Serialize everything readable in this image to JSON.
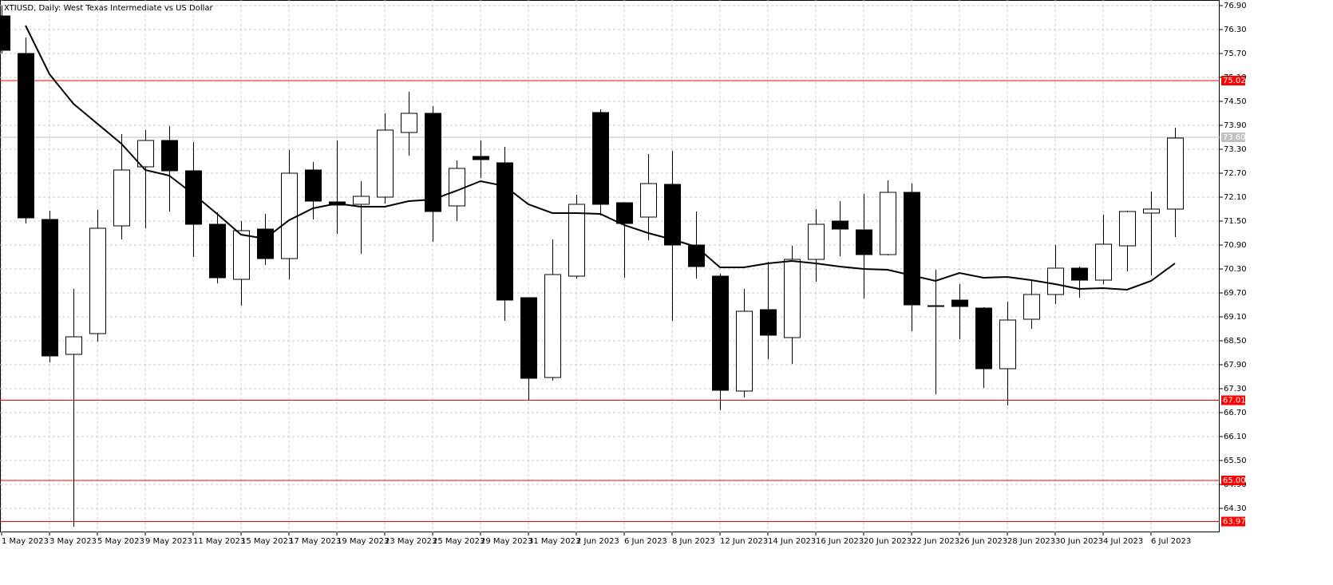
{
  "chart_data": {
    "type": "candlestick",
    "title": "XTIUSD, Daily:  West Texas Intermediate vs US Dollar",
    "categories": [
      "1 May 2023",
      null,
      "3 May 2023",
      null,
      "5 May 2023",
      null,
      "9 May 2023",
      null,
      "11 May 2023",
      null,
      "15 May 2023",
      null,
      "17 May 2023",
      null,
      "19 May 2023",
      null,
      "23 May 2023",
      null,
      "25 May 2023",
      null,
      "29 May 2023",
      null,
      "31 May 2023",
      null,
      "2 Jun 2023",
      null,
      "6 Jun 2023",
      null,
      "8 Jun 2023",
      null,
      "12 Jun 2023",
      null,
      "14 Jun 2023",
      null,
      "16 Jun 2023",
      null,
      "20 Jun 2023",
      null,
      "22 Jun 2023",
      null,
      "26 Jun 2023",
      null,
      "28 Jun 2023",
      null,
      "30 Jun 2023",
      null,
      "4 Jul 2023",
      null,
      "6 Jul 2023",
      null
    ],
    "open": [
      76.64,
      75.7,
      71.54,
      68.16,
      68.68,
      71.38,
      72.86,
      73.52,
      72.76,
      71.42,
      70.04,
      71.3,
      70.56,
      72.78,
      71.98,
      71.92,
      72.1,
      73.72,
      74.2,
      71.88,
      73.12,
      72.96,
      69.58,
      67.58,
      70.12,
      74.22,
      71.96,
      71.6,
      72.42,
      70.9,
      70.12,
      67.24,
      69.28,
      68.58,
      70.54,
      71.5,
      71.28,
      70.66,
      72.22,
      69.38,
      69.52,
      69.32,
      67.8,
      69.04,
      69.66,
      70.32,
      70.02,
      70.88,
      71.7,
      71.8
    ],
    "high": [
      76.9,
      76.1,
      71.76,
      69.8,
      71.78,
      73.68,
      73.78,
      73.88,
      73.48,
      71.72,
      71.5,
      71.68,
      73.28,
      72.98,
      73.52,
      72.5,
      74.2,
      74.74,
      74.38,
      73.02,
      73.52,
      73.36,
      69.58,
      71.04,
      72.16,
      74.3,
      71.96,
      73.18,
      73.26,
      71.74,
      70.18,
      69.8,
      70.48,
      70.88,
      71.8,
      72.0,
      72.18,
      72.52,
      72.44,
      70.28,
      69.92,
      69.34,
      69.48,
      70.0,
      70.9,
      70.36,
      71.66,
      71.76,
      72.24,
      73.84
    ],
    "low": [
      75.7,
      71.44,
      67.96,
      63.84,
      68.48,
      71.04,
      71.32,
      71.74,
      70.6,
      69.94,
      69.38,
      70.4,
      70.04,
      71.54,
      71.18,
      70.68,
      71.94,
      73.14,
      70.98,
      71.5,
      72.58,
      69.0,
      67.0,
      67.5,
      70.06,
      71.64,
      70.08,
      71.02,
      69.0,
      70.06,
      66.76,
      67.08,
      68.04,
      67.92,
      69.98,
      70.62,
      69.56,
      70.64,
      68.74,
      67.16,
      68.54,
      67.32,
      66.88,
      68.8,
      69.42,
      69.58,
      69.92,
      70.24,
      70.14,
      71.1
    ],
    "close": [
      75.78,
      71.58,
      68.12,
      68.6,
      71.32,
      72.78,
      73.52,
      72.76,
      71.42,
      70.08,
      71.26,
      70.56,
      72.7,
      72.0,
      71.9,
      72.12,
      73.78,
      74.2,
      71.74,
      72.82,
      73.04,
      69.52,
      67.56,
      70.16,
      71.92,
      71.92,
      71.44,
      72.44,
      70.9,
      70.36,
      67.26,
      69.24,
      68.64,
      70.54,
      71.42,
      71.3,
      70.66,
      72.22,
      69.4,
      69.36,
      69.36,
      67.8,
      69.02,
      69.66,
      70.32,
      70.02,
      70.92,
      71.74,
      71.8,
      73.58
    ],
    "moving_average": [
      null,
      76.4,
      75.18,
      74.44,
      73.94,
      73.44,
      72.78,
      72.64,
      72.18,
      71.68,
      71.16,
      71.06,
      71.52,
      71.82,
      71.94,
      71.86,
      71.86,
      72.0,
      72.04,
      72.26,
      72.5,
      72.38,
      71.92,
      71.7,
      71.7,
      71.68,
      71.4,
      71.2,
      71.04,
      70.86,
      70.34,
      70.34,
      70.44,
      70.5,
      70.44,
      70.36,
      70.3,
      70.28,
      70.14,
      70.0,
      70.2,
      70.08,
      70.1,
      70.02,
      69.92,
      69.8,
      69.82,
      69.78,
      70.0,
      70.44
    ],
    "up_color": "#ffffff",
    "down_color": "#000000",
    "line_color": "#000000",
    "ylim": [
      63.7,
      77.04
    ],
    "yticks": [
      {
        "value": 76.9,
        "label": "76.90"
      },
      {
        "value": 76.3,
        "label": "76.30"
      },
      {
        "value": 75.7,
        "label": "75.70"
      },
      {
        "value": 75.1,
        "label": "75.10"
      },
      {
        "value": 74.5,
        "label": "74.50"
      },
      {
        "value": 73.9,
        "label": "73.90"
      },
      {
        "value": 73.3,
        "label": "73.30"
      },
      {
        "value": 72.7,
        "label": "72.70"
      },
      {
        "value": 72.1,
        "label": "72.10"
      },
      {
        "value": 71.5,
        "label": "71.50"
      },
      {
        "value": 70.9,
        "label": "70.90"
      },
      {
        "value": 70.3,
        "label": "70.30"
      },
      {
        "value": 69.7,
        "label": "69.70"
      },
      {
        "value": 69.1,
        "label": "69.10"
      },
      {
        "value": 68.5,
        "label": "68.50"
      },
      {
        "value": 67.9,
        "label": "67.90"
      },
      {
        "value": 67.3,
        "label": "67.30"
      },
      {
        "value": 66.7,
        "label": "66.70"
      },
      {
        "value": 66.1,
        "label": "66.10"
      },
      {
        "value": 65.5,
        "label": "65.50"
      },
      {
        "value": 64.9,
        "label": "64.90"
      },
      {
        "value": 64.3,
        "label": "64.30"
      }
    ],
    "grid": true,
    "hlines": [
      {
        "value": 75.02,
        "label": "75.02",
        "color": "#ff0000"
      },
      {
        "value": 73.6,
        "label": "73.60",
        "color": "#c0c0c0"
      },
      {
        "value": 67.01,
        "label": "67.01",
        "color": "#ff0000"
      },
      {
        "value": 65,
        "label": "65.00",
        "color": "#ff0000"
      },
      {
        "value": 63.97,
        "label": "63.97",
        "color": "#ff0000"
      }
    ]
  }
}
